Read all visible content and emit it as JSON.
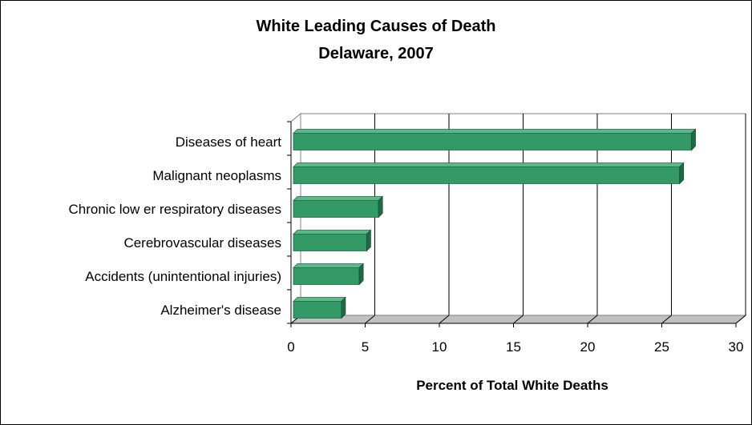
{
  "chart_data": {
    "type": "bar",
    "orientation": "horizontal",
    "title": "White Leading Causes of Death",
    "subtitle": "Delaware, 2007",
    "xlabel": "Percent of Total White Deaths",
    "ylabel": "",
    "categories": [
      "Diseases of heart",
      "Malignant neoplasms",
      "Chronic low er respiratory diseases",
      "Cerebrovascular diseases",
      "Accidents (unintentional injuries)",
      "Alzheimer's disease"
    ],
    "values": [
      27.0,
      26.2,
      5.9,
      5.1,
      4.6,
      3.4
    ],
    "xlim": [
      0,
      30
    ],
    "xticks": [
      0,
      5,
      10,
      15,
      20,
      25,
      30
    ],
    "grid": "vertical",
    "legend": "none",
    "bar_color": "#339966"
  }
}
